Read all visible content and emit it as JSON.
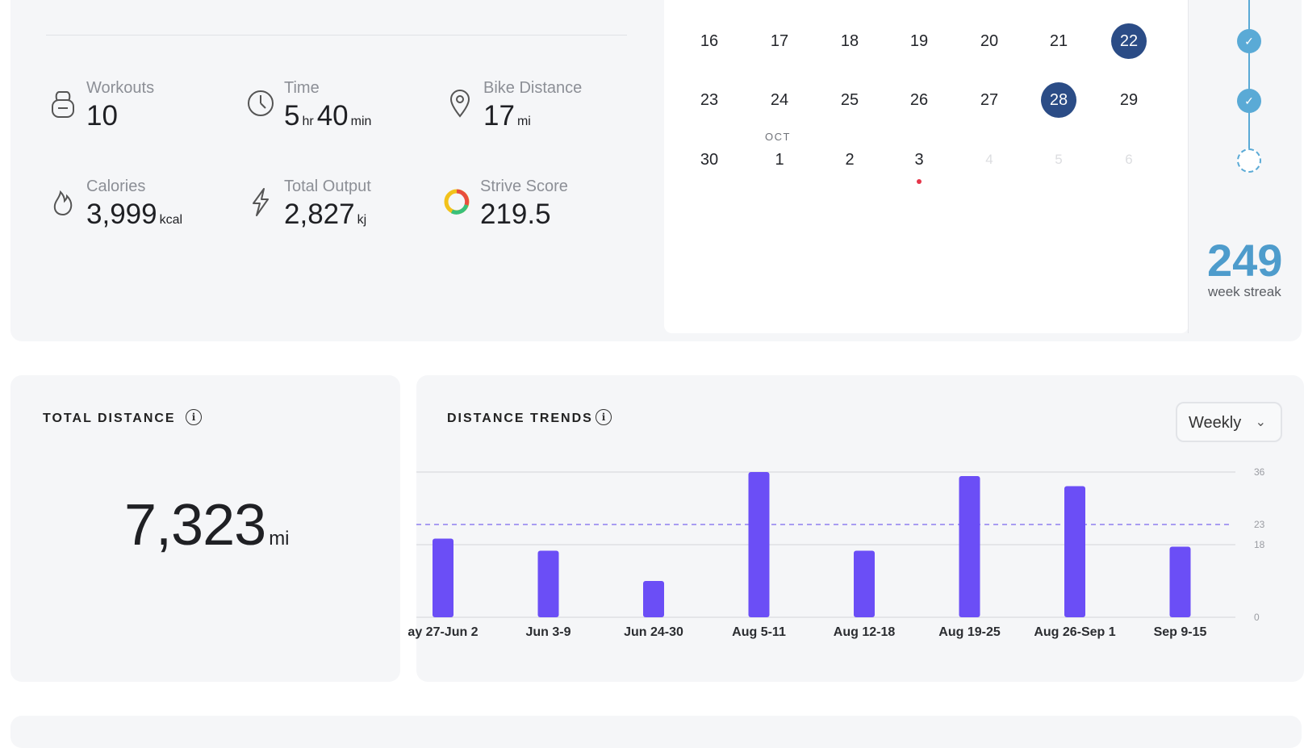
{
  "stats": {
    "workouts": {
      "label": "Workouts",
      "value": "10",
      "icon": "kettlebell-icon"
    },
    "time": {
      "label": "Time",
      "hours": "5",
      "hr_unit": "hr",
      "minutes": "40",
      "min_unit": "min",
      "icon": "clock-icon"
    },
    "bike_distance": {
      "label": "Bike Distance",
      "value": "17",
      "unit": "mi",
      "icon": "location-pin-icon"
    },
    "calories": {
      "label": "Calories",
      "value": "3,999",
      "unit": "kcal",
      "icon": "flame-icon"
    },
    "total_output": {
      "label": "Total Output",
      "value": "2,827",
      "unit": "kj",
      "icon": "lightning-icon"
    },
    "strive_score": {
      "label": "Strive Score",
      "value": "219.5",
      "icon": "ring-icon"
    }
  },
  "calendar": {
    "row1": [
      "16",
      "17",
      "18",
      "19",
      "20",
      "21",
      "22"
    ],
    "row2": [
      "23",
      "24",
      "25",
      "26",
      "27",
      "28",
      "29"
    ],
    "row3": [
      "30",
      "1",
      "2",
      "3",
      "4",
      "5",
      "6"
    ],
    "month_marker": "OCT",
    "selected_days": [
      "22",
      "28"
    ],
    "selected_color": "#2b4c86",
    "today_marker_color": "#e5364a"
  },
  "streak": {
    "number": "249",
    "label": "week streak",
    "weeks": [
      "completed",
      "completed",
      "in-progress"
    ],
    "color": "#4e9ccc"
  },
  "total_distance": {
    "title": "TOTAL DISTANCE",
    "value": "7,323",
    "unit": "mi"
  },
  "distance_trends": {
    "title": "DISTANCE TRENDS",
    "period_select": "Weekly"
  },
  "chart_data": {
    "type": "bar",
    "categories": [
      "ay 27-Jun 2",
      "Jun 3-9",
      "Jun 24-30",
      "Aug 5-11",
      "Aug 12-18",
      "Aug 19-25",
      "Aug 26-Sep 1",
      "Sep 9-15"
    ],
    "values": [
      19.5,
      16.5,
      9,
      36,
      16.5,
      35,
      32.5,
      17.5
    ],
    "yticks": [
      "0",
      "18",
      "23",
      "36"
    ],
    "ylim": [
      0,
      36
    ],
    "average_line": 23,
    "bar_color": "#6b4ef6",
    "average_line_color": "#8f7ff0",
    "grid": true
  }
}
